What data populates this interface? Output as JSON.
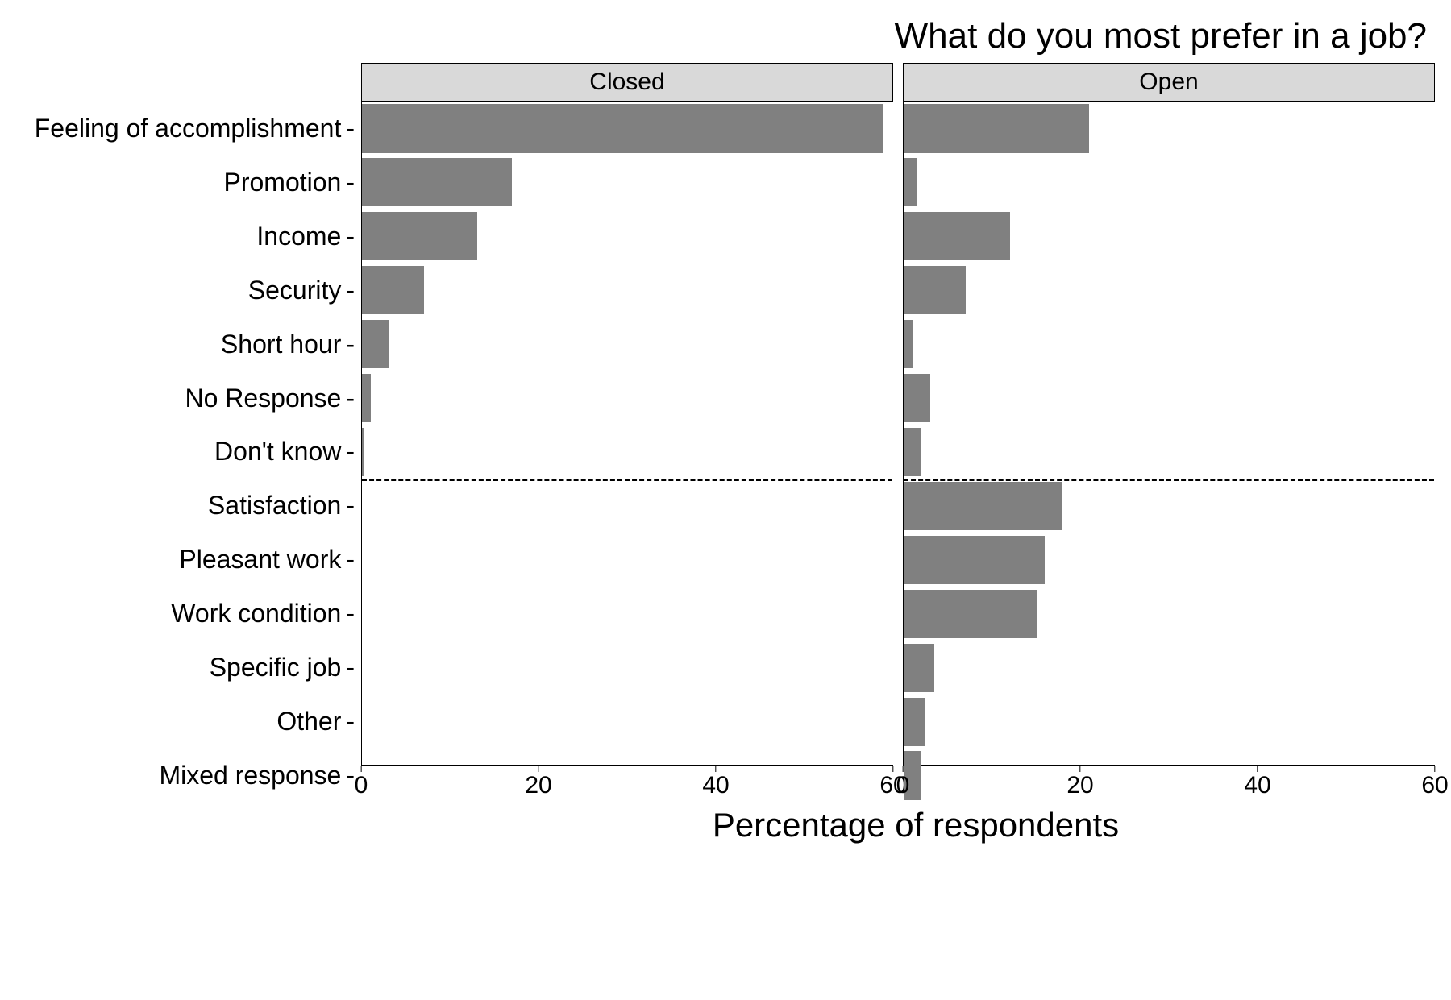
{
  "chart": {
    "type": "bar",
    "title": "What do you most prefer in a job?",
    "title_fontsize": 44,
    "title_color": "#000000",
    "xlabel": "Percentage of respondents",
    "xlabel_fontsize": 42,
    "xlabel_color": "#000000",
    "background_color": "#ffffff",
    "panel_background": "#ffffff",
    "panel_border_color": "#000000",
    "panel_border_width": 1,
    "facet_strip_background": "#d9d9d9",
    "facet_strip_border": "#000000",
    "facet_strip_fontsize": 30,
    "facet_strip_height": 48,
    "gridline_color": "#ffffff",
    "bar_color": "#808080",
    "bar_height_ratio": 0.9,
    "axis_text_fontsize": 32,
    "axis_tick_fontsize": 30,
    "xlim": [
      0,
      60
    ],
    "xticks": [
      0,
      20,
      40,
      60
    ],
    "panel_gap": 12,
    "y_label_width": 450,
    "panel_inner_height": 870,
    "panel_width_closed": 660,
    "panel_width_open": 660,
    "dashed_line_color": "#000000",
    "dashed_line_style": "dashed",
    "dashed_line_width": 3,
    "dashed_after_index": 6,
    "categories": [
      "Feeling of accomplishment",
      "Promotion",
      "Income",
      "Security",
      "Short hour",
      "No Response",
      "Don't know",
      "Satisfaction",
      "Pleasant work",
      "Work condition",
      "Specific job",
      "Other",
      "Mixed response"
    ],
    "facets": [
      {
        "label": "Closed",
        "values": [
          59,
          17,
          13,
          7,
          3,
          1,
          0.3,
          0,
          0,
          0,
          0,
          0,
          0
        ]
      },
      {
        "label": "Open",
        "values": [
          21,
          1.5,
          12,
          7,
          1,
          3,
          2,
          18,
          16,
          15,
          3.5,
          2.5,
          2
        ]
      }
    ]
  }
}
